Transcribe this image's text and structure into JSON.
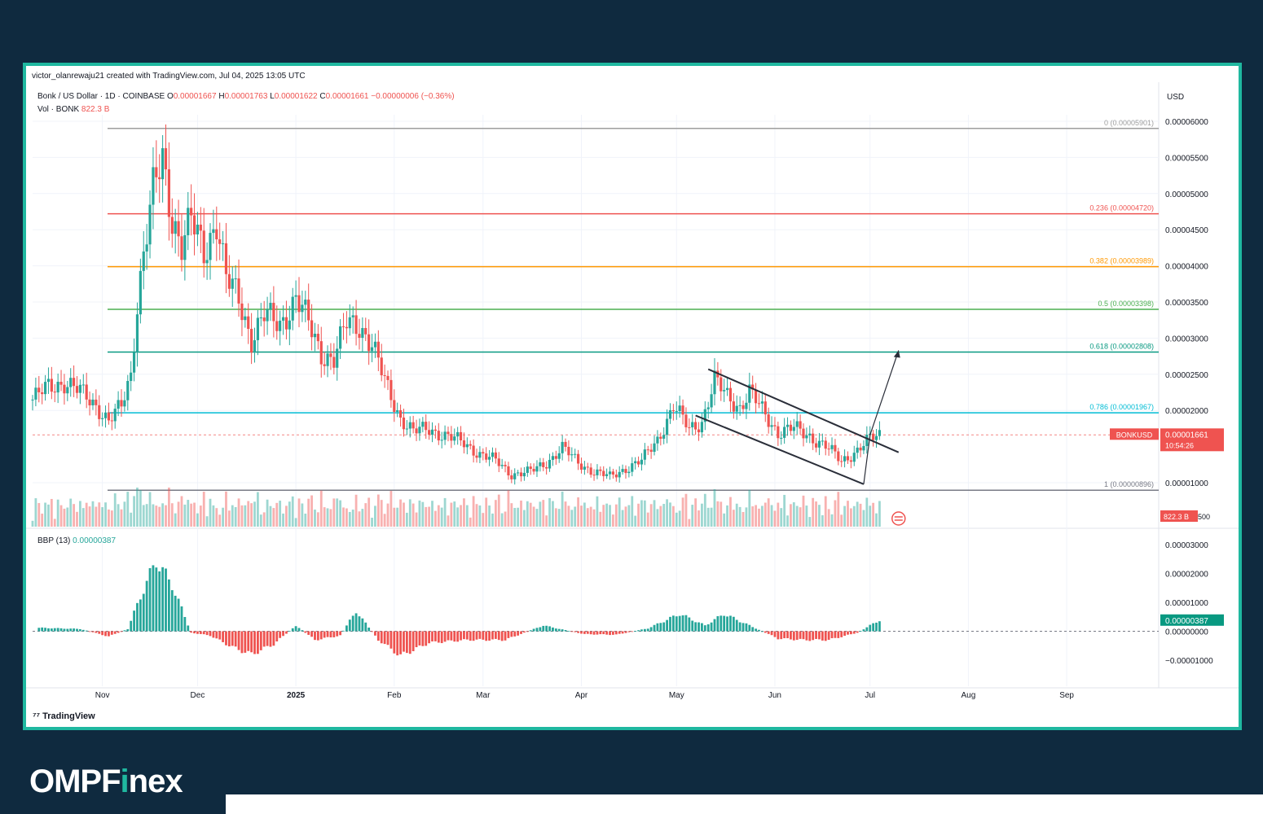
{
  "header": {
    "credit": "victor_olanrewaju21 created with TradingView.com, Jul 04, 2025 13:05 UTC",
    "symbol": "Bonk / US Dollar · 1D · COINBASE",
    "o_label": "O",
    "o_val": "0.00001667",
    "h_label": "H",
    "h_val": "0.00001763",
    "l_label": "L",
    "l_val": "0.00001622",
    "c_label": "C",
    "c_val": "0.00001661",
    "change": "−0.00000006 (−0.36%)",
    "vol_label": "Vol · BONK",
    "vol_val": "822.3 B",
    "currency": "USD"
  },
  "bbp": {
    "label": "BBP (13)",
    "value": "0.00000387",
    "badge": "0.00000387"
  },
  "price_badge": {
    "ticker": "BONKUSD",
    "price": "0.00001661",
    "countdown": "10:54:26"
  },
  "vol_badge": "822.3 B",
  "vol_axis_suffix": "500",
  "watermark": "TradingView",
  "brand": {
    "part1": "OMPF",
    "part2": "i",
    "part3": "nex"
  },
  "colors": {
    "up": "#26a69a",
    "down": "#ef5350",
    "frame": "#1fb8a0",
    "bg": "#0f2a3f"
  },
  "chart_data": {
    "type": "candlestick",
    "y_axis": {
      "unit": "USD",
      "ticks": [
        "0.00006000",
        "0.00005500",
        "0.00005000",
        "0.00004500",
        "0.00004000",
        "0.00003500",
        "0.00003000",
        "0.00002500",
        "0.00002000",
        "0.00001000"
      ],
      "tick_values": [
        6e-05,
        5.5e-05,
        5e-05,
        4.5e-05,
        4e-05,
        3.5e-05,
        3e-05,
        2.5e-05,
        2e-05,
        1e-05
      ]
    },
    "bbp_axis": {
      "ticks": [
        "0.00003000",
        "0.00002000",
        "0.00001000",
        "0.00000000",
        "−0.00001000"
      ],
      "tick_values": [
        3e-05,
        2e-05,
        1e-05,
        0,
        -1e-05
      ]
    },
    "x_axis": {
      "labels": [
        "Nov",
        "Dec",
        "2025",
        "Feb",
        "Mar",
        "Apr",
        "May",
        "Jun",
        "Jul",
        "Aug",
        "Sep"
      ],
      "label_dates": [
        "2024-11-01",
        "2024-12-01",
        "2025-01-01",
        "2025-02-01",
        "2025-03-01",
        "2025-04-01",
        "2025-05-01",
        "2025-06-01",
        "2025-07-01",
        "2025-08-01",
        "2025-09-01"
      ],
      "start": "2024-10-10",
      "end": "2025-09-30"
    },
    "fib_levels": [
      {
        "ratio": "0",
        "label": "0 (0.00005901)",
        "value": 5.901e-05,
        "color": "#9e9e9e"
      },
      {
        "ratio": "0.236",
        "label": "0.236 (0.00004720)",
        "value": 4.72e-05,
        "color": "#ef5350"
      },
      {
        "ratio": "0.382",
        "label": "0.382 (0.00003989)",
        "value": 3.989e-05,
        "color": "#ff9800"
      },
      {
        "ratio": "0.5",
        "label": "0.5 (0.00003398)",
        "value": 3.398e-05,
        "color": "#4caf50"
      },
      {
        "ratio": "0.618",
        "label": "0.618 (0.00002808)",
        "value": 2.808e-05,
        "color": "#089981"
      },
      {
        "ratio": "0.786",
        "label": "0.786 (0.00001967)",
        "value": 1.967e-05,
        "color": "#00bcd4"
      },
      {
        "ratio": "1",
        "label": "1 (0.00000896)",
        "value": 8.96e-06,
        "color": "#787b86"
      }
    ],
    "trendlines": [
      {
        "name": "upper channel",
        "x": [
          "2025-05-11",
          "2025-07-10"
        ],
        "y": [
          2.57e-05,
          1.42e-05
        ]
      },
      {
        "name": "lower channel",
        "x": [
          "2025-05-07",
          "2025-06-29"
        ],
        "y": [
          1.93e-05,
          9.8e-06
        ]
      }
    ],
    "projection_arrow": {
      "x": [
        "2025-07-01",
        "2025-07-10"
      ],
      "y": [
        1.66e-05,
        2.83e-05
      ]
    },
    "current_price": 1.661e-05,
    "price_series": [
      {
        "date": "2024-10-10",
        "close": 2.15e-05
      },
      {
        "date": "2024-10-15",
        "close": 2.32e-05
      },
      {
        "date": "2024-10-20",
        "close": 2.4e-05
      },
      {
        "date": "2024-10-25",
        "close": 2.25e-05
      },
      {
        "date": "2024-10-30",
        "close": 2.08e-05
      },
      {
        "date": "2024-11-03",
        "close": 1.85e-05
      },
      {
        "date": "2024-11-07",
        "close": 2.05e-05
      },
      {
        "date": "2024-11-10",
        "close": 2.5e-05
      },
      {
        "date": "2024-11-12",
        "close": 3.5e-05
      },
      {
        "date": "2024-11-14",
        "close": 4.2e-05
      },
      {
        "date": "2024-11-17",
        "close": 5e-05
      },
      {
        "date": "2024-11-20",
        "close": 5.45e-05
      },
      {
        "date": "2024-11-23",
        "close": 4.7e-05
      },
      {
        "date": "2024-11-26",
        "close": 4.3e-05
      },
      {
        "date": "2024-11-29",
        "close": 4.6e-05
      },
      {
        "date": "2024-12-03",
        "close": 4.2e-05
      },
      {
        "date": "2024-12-07",
        "close": 4.65e-05
      },
      {
        "date": "2024-12-10",
        "close": 3.8e-05
      },
      {
        "date": "2024-12-14",
        "close": 3.55e-05
      },
      {
        "date": "2024-12-18",
        "close": 3e-05
      },
      {
        "date": "2024-12-22",
        "close": 3.3e-05
      },
      {
        "date": "2024-12-27",
        "close": 3.2e-05
      },
      {
        "date": "2025-01-01",
        "close": 3.55e-05
      },
      {
        "date": "2025-01-05",
        "close": 3.2e-05
      },
      {
        "date": "2025-01-09",
        "close": 2.8e-05
      },
      {
        "date": "2025-01-13",
        "close": 2.7e-05
      },
      {
        "date": "2025-01-17",
        "close": 3.2e-05
      },
      {
        "date": "2025-01-21",
        "close": 3.2e-05
      },
      {
        "date": "2025-01-25",
        "close": 2.9e-05
      },
      {
        "date": "2025-01-29",
        "close": 2.4e-05
      },
      {
        "date": "2025-02-03",
        "close": 1.9e-05
      },
      {
        "date": "2025-02-07",
        "close": 1.7e-05
      },
      {
        "date": "2025-02-12",
        "close": 1.75e-05
      },
      {
        "date": "2025-02-17",
        "close": 1.65e-05
      },
      {
        "date": "2025-02-23",
        "close": 1.55e-05
      },
      {
        "date": "2025-02-28",
        "close": 1.4e-05
      },
      {
        "date": "2025-03-05",
        "close": 1.3e-05
      },
      {
        "date": "2025-03-10",
        "close": 1.12e-05
      },
      {
        "date": "2025-03-16",
        "close": 1.15e-05
      },
      {
        "date": "2025-03-21",
        "close": 1.28e-05
      },
      {
        "date": "2025-03-26",
        "close": 1.48e-05
      },
      {
        "date": "2025-03-31",
        "close": 1.28e-05
      },
      {
        "date": "2025-04-05",
        "close": 1.15e-05
      },
      {
        "date": "2025-04-10",
        "close": 1.08e-05
      },
      {
        "date": "2025-04-15",
        "close": 1.2e-05
      },
      {
        "date": "2025-04-20",
        "close": 1.3e-05
      },
      {
        "date": "2025-04-25",
        "close": 1.6e-05
      },
      {
        "date": "2025-04-30",
        "close": 2.05e-05
      },
      {
        "date": "2025-05-05",
        "close": 1.75e-05
      },
      {
        "date": "2025-05-09",
        "close": 1.85e-05
      },
      {
        "date": "2025-05-13",
        "close": 2.4e-05
      },
      {
        "date": "2025-05-17",
        "close": 2.2e-05
      },
      {
        "date": "2025-05-21",
        "close": 2.05e-05
      },
      {
        "date": "2025-05-24",
        "close": 2.25e-05
      },
      {
        "date": "2025-05-28",
        "close": 2e-05
      },
      {
        "date": "2025-06-02",
        "close": 1.7e-05
      },
      {
        "date": "2025-06-07",
        "close": 1.75e-05
      },
      {
        "date": "2025-06-12",
        "close": 1.65e-05
      },
      {
        "date": "2025-06-17",
        "close": 1.5e-05
      },
      {
        "date": "2025-06-22",
        "close": 1.3e-05
      },
      {
        "date": "2025-06-27",
        "close": 1.45e-05
      },
      {
        "date": "2025-07-01",
        "close": 1.6e-05
      },
      {
        "date": "2025-07-04",
        "close": 1.661e-05
      }
    ],
    "bbp_series": [
      {
        "date": "2024-10-12",
        "value": 1.2e-06
      },
      {
        "date": "2024-10-25",
        "value": 8e-07
      },
      {
        "date": "2024-11-03",
        "value": -1.8e-06
      },
      {
        "date": "2024-11-09",
        "value": 8e-07
      },
      {
        "date": "2024-11-13",
        "value": 1.2e-05
      },
      {
        "date": "2024-11-18",
        "value": 2.45e-05
      },
      {
        "date": "2024-11-23",
        "value": 1.6e-05
      },
      {
        "date": "2024-11-29",
        "value": -5e-07
      },
      {
        "date": "2024-12-05",
        "value": -1.5e-06
      },
      {
        "date": "2024-12-12",
        "value": -5.5e-06
      },
      {
        "date": "2024-12-18",
        "value": -8e-06
      },
      {
        "date": "2024-12-25",
        "value": -4.5e-06
      },
      {
        "date": "2025-01-01",
        "value": 2e-06
      },
      {
        "date": "2025-01-07",
        "value": -3e-06
      },
      {
        "date": "2025-01-15",
        "value": -1.5e-06
      },
      {
        "date": "2025-01-20",
        "value": 7e-06
      },
      {
        "date": "2025-01-27",
        "value": -3e-06
      },
      {
        "date": "2025-02-03",
        "value": -8.5e-06
      },
      {
        "date": "2025-02-12",
        "value": -4e-06
      },
      {
        "date": "2025-02-24",
        "value": -3e-06
      },
      {
        "date": "2025-03-08",
        "value": -3e-06
      },
      {
        "date": "2025-03-20",
        "value": 2e-06
      },
      {
        "date": "2025-04-02",
        "value": -1e-06
      },
      {
        "date": "2025-04-12",
        "value": -1.2e-06
      },
      {
        "date": "2025-04-22",
        "value": 1e-06
      },
      {
        "date": "2025-05-02",
        "value": 6e-06
      },
      {
        "date": "2025-05-10",
        "value": 2e-06
      },
      {
        "date": "2025-05-16",
        "value": 6e-06
      },
      {
        "date": "2025-05-24",
        "value": 2e-06
      },
      {
        "date": "2025-06-02",
        "value": -2.5e-06
      },
      {
        "date": "2025-06-10",
        "value": -3e-06
      },
      {
        "date": "2025-06-18",
        "value": -3e-06
      },
      {
        "date": "2025-06-27",
        "value": -5e-07
      },
      {
        "date": "2025-07-04",
        "value": 3.87e-06
      }
    ]
  }
}
